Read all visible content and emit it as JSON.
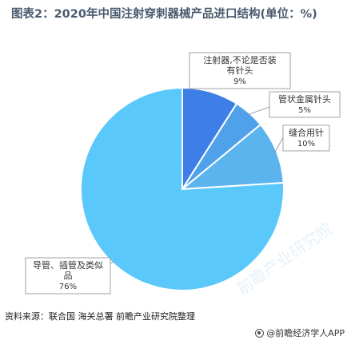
{
  "title": "图表2：2020年中国注射穿刺器械产品进口结构(单位：%)",
  "source": "资料来源：联合国 海关总署 前瞻产业研究院整理",
  "brand": "@前瞻经济学人APP",
  "watermark": "前瞻产业研究院",
  "colors": {
    "series": [
      "#3d7fe6",
      "#4fa2ea",
      "#5bb4ee",
      "#5ac8fa"
    ],
    "label_border": "#8a8a8a"
  },
  "chart_data": {
    "type": "pie",
    "title": "图表2：2020年中国注射穿刺器械产品进口结构(单位：%)",
    "slices": [
      {
        "label_lines": [
          "注射器,不论是否装",
          "有针头"
        ],
        "value": 9,
        "value_label": "9%"
      },
      {
        "label_lines": [
          "管状金属针头"
        ],
        "value": 5,
        "value_label": "5%"
      },
      {
        "label_lines": [
          "缝合用针"
        ],
        "value": 10,
        "value_label": "10%"
      },
      {
        "label_lines": [
          "导管、插管及类似",
          "品"
        ],
        "value": 76,
        "value_label": "76%"
      }
    ]
  }
}
